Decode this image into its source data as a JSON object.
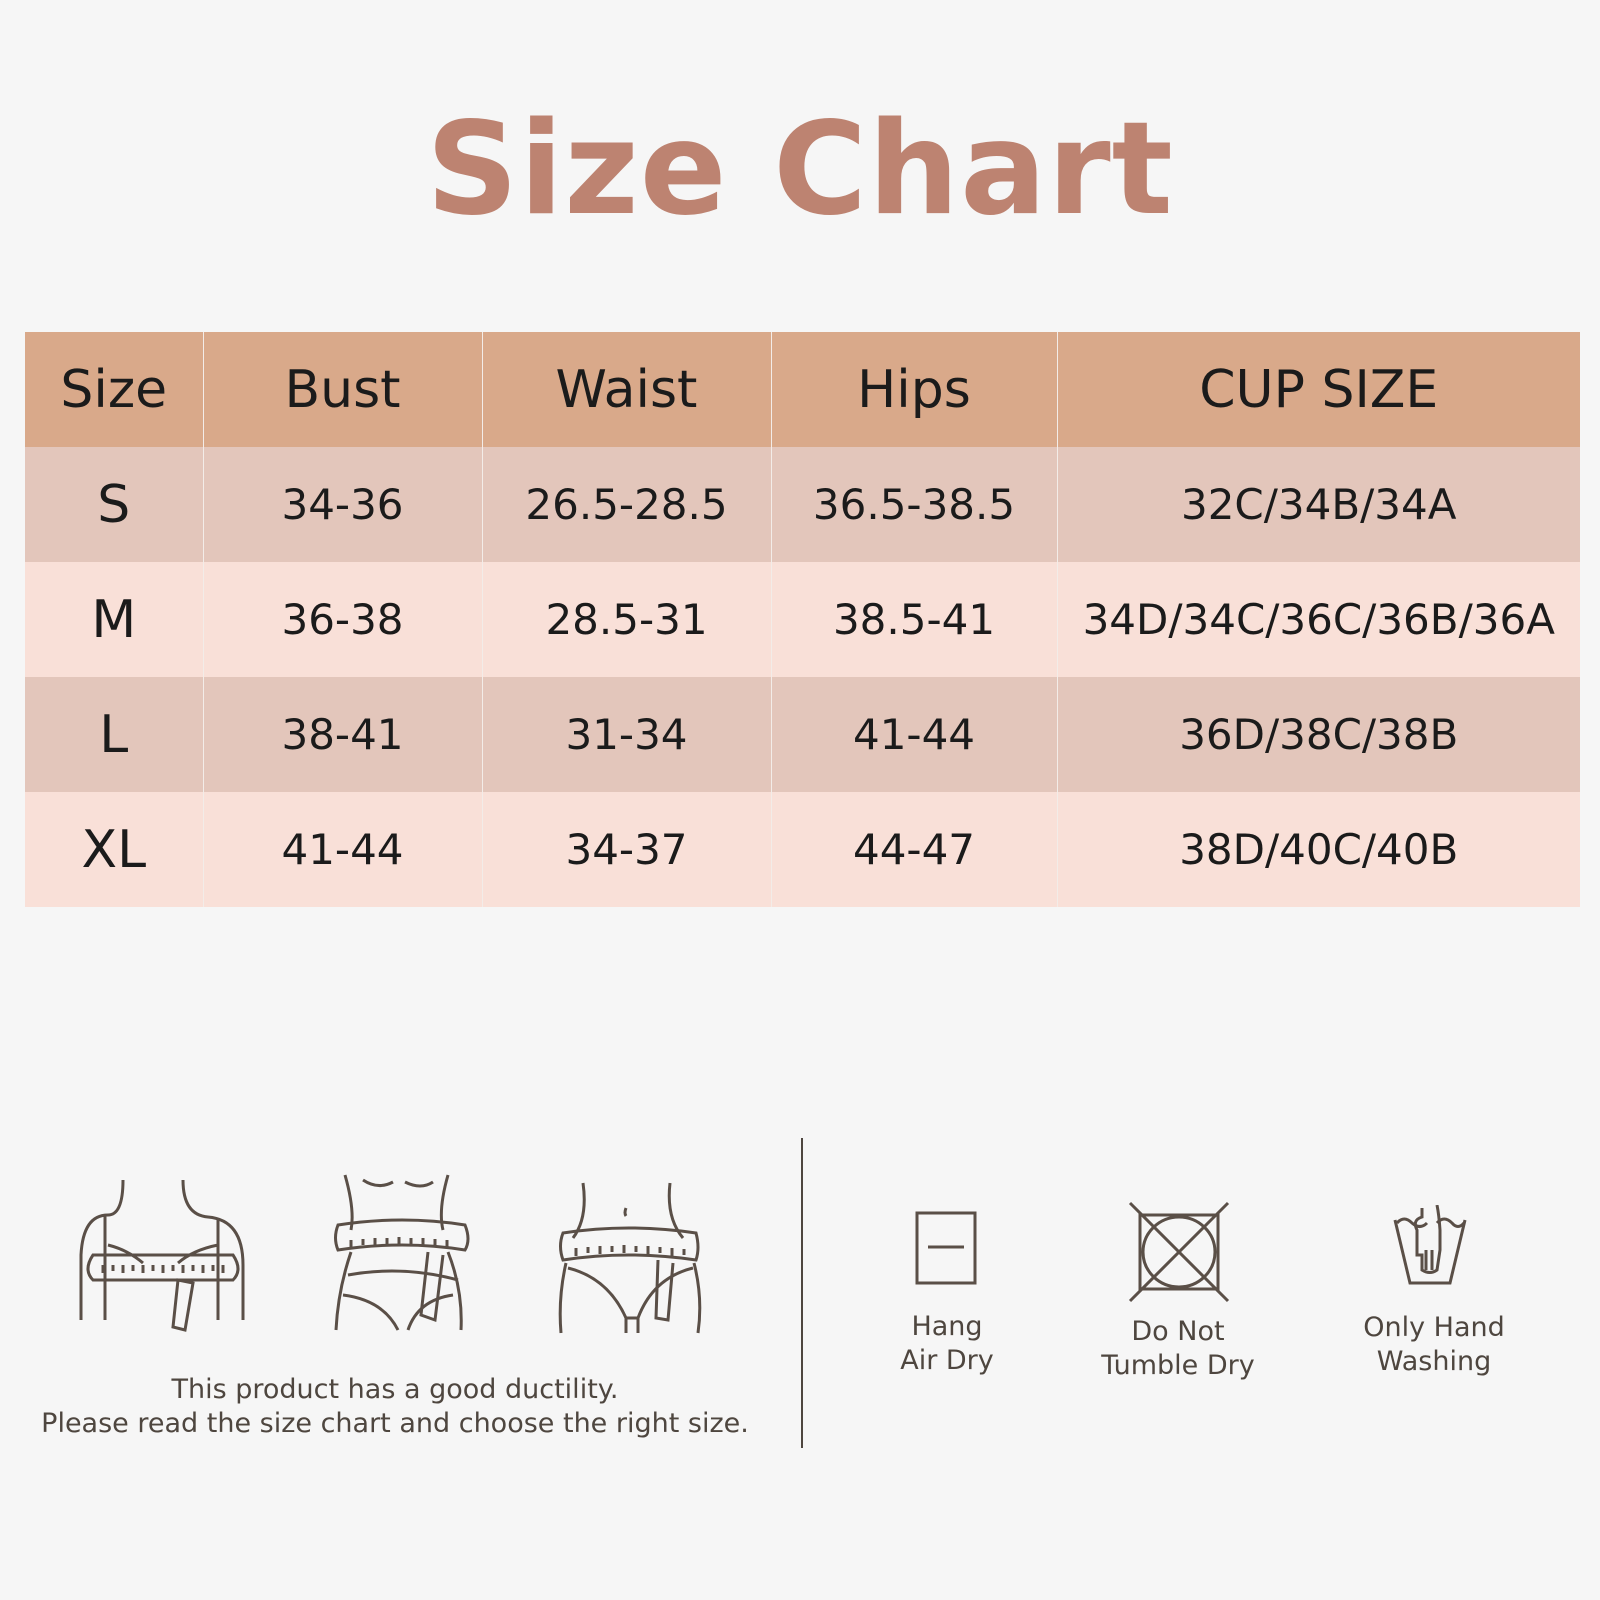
{
  "title": "Size Chart",
  "table": {
    "headers": [
      "Size",
      "Bust",
      "Waist",
      "Hips",
      "CUP SIZE"
    ],
    "rows": [
      [
        "S",
        "34-36",
        "26.5-28.5",
        "36.5-38.5",
        "32C/34B/34A"
      ],
      [
        "M",
        "36-38",
        "28.5-31",
        "38.5-41",
        "34D/34C/36C/36B/36A"
      ],
      [
        "L",
        "38-41",
        "31-34",
        "41-44",
        "36D/38C/38B"
      ],
      [
        "XL",
        "41-44",
        "34-37",
        "44-47",
        "38D/40C/40B"
      ]
    ]
  },
  "measure_icons": [
    "bust-measure-icon",
    "waist-measure-icon",
    "hips-measure-icon"
  ],
  "note": {
    "line1": "This product has a good ductility.",
    "line2": "Please read the size chart and choose the right size."
  },
  "care": [
    {
      "icon": "hang-dry-icon",
      "line1": "Hang",
      "line2": "Air Dry"
    },
    {
      "icon": "no-tumble-dry-icon",
      "line1": "Do Not",
      "line2": "Tumble Dry"
    },
    {
      "icon": "hand-wash-icon",
      "line1": "Only Hand",
      "line2": "Washing"
    }
  ],
  "colors": {
    "title": "#bd8371",
    "header": "#d9a98a",
    "row_dark": "#e3c6bb",
    "row_light": "#f9e0d8",
    "icon": "#5a4f47"
  }
}
